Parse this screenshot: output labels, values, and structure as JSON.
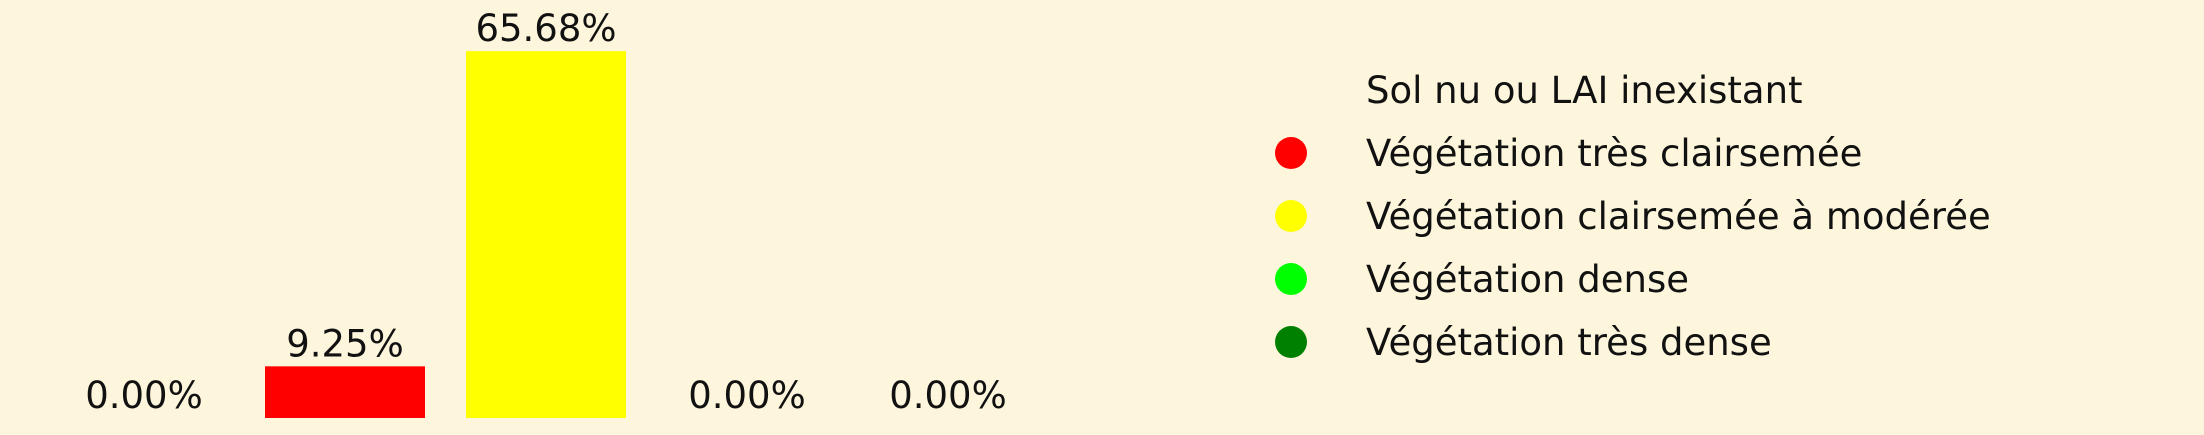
{
  "background_color": "#fdf6dc",
  "chart_data": {
    "type": "bar",
    "categories": [
      "Sol nu ou LAI inexistant",
      "Végétation très clairsemée",
      "Végétation clairsemée à modérée",
      "Végétation dense",
      "Végétation très dense"
    ],
    "values": [
      0.0,
      9.25,
      65.68,
      0.0,
      0.0
    ],
    "value_labels": [
      "0.00%",
      "9.25%",
      "65.68%",
      "0.00%",
      "0.00%"
    ],
    "colors": [
      "#fdf6dc",
      "#ff0000",
      "#ffff00",
      "#00ff00",
      "#008000"
    ],
    "ylim": [
      0,
      70
    ],
    "axes_visible": false,
    "grid": false,
    "legend_position": "right",
    "title": "",
    "xlabel": "",
    "ylabel": ""
  }
}
